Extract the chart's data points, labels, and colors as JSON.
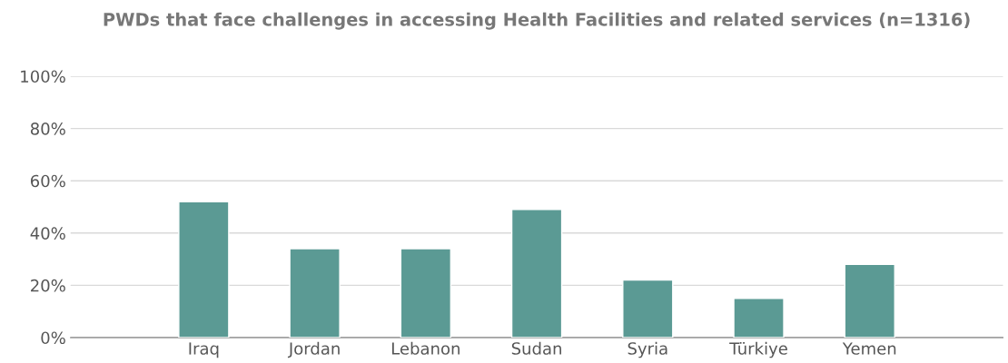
{
  "chart_data": {
    "type": "bar",
    "title": "PWDs that face challenges in accessing Health Facilities and related services (n=1316)",
    "categories": [
      "Iraq",
      "Jordan",
      "Lebanon",
      "Sudan",
      "Syria",
      "Türkiye",
      "Yemen"
    ],
    "values": [
      52,
      34,
      34,
      49,
      22,
      15,
      28
    ],
    "color": "#5b9a94",
    "ylim": [
      0,
      100
    ],
    "yticks": [
      {
        "value": 0,
        "label": "0%"
      },
      {
        "value": 20,
        "label": "20%"
      },
      {
        "value": 40,
        "label": "40%"
      },
      {
        "value": 60,
        "label": "60%"
      },
      {
        "value": 80,
        "label": "80%"
      },
      {
        "value": 100,
        "label": "100%"
      }
    ],
    "grid": "y"
  }
}
